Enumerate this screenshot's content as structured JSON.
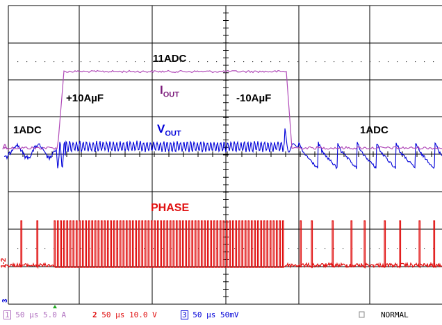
{
  "labels": {
    "i_out_main": "I",
    "i_out_sub": "OUT",
    "v_out_main": "V",
    "v_out_sub": "OUT",
    "phase": "PHASE",
    "level_high": "11ADC",
    "level_low_left": "1ADC",
    "level_low_right": "1ADC",
    "step_up": "+10AµF",
    "step_down": "-10AµF"
  },
  "status_bar": {
    "ch1": {
      "num": "1",
      "timebase": "50 µs",
      "scale": "5.0 A"
    },
    "ch2": {
      "num": "2",
      "timebase": "50 µs",
      "scale": "10.0 V"
    },
    "ch3": {
      "num": "3",
      "timebase": "50 µs",
      "scale": "50mV"
    },
    "mode": "NORMAL"
  },
  "markers": {
    "ch1": "1",
    "ch2": "2",
    "ch3": "3",
    "ch12": "1-2",
    "trigger_marker": "A"
  },
  "colors": {
    "iout": "#b04ab8",
    "vout": "#0000d8",
    "phase": "#e01010",
    "label_purple": "#7a1a7a",
    "grid": "#000000",
    "status_ch1": "#b070c0",
    "status_ch2": "#e01010",
    "status_ch3": "#0000d8",
    "trigger": "#22aa22"
  }
}
